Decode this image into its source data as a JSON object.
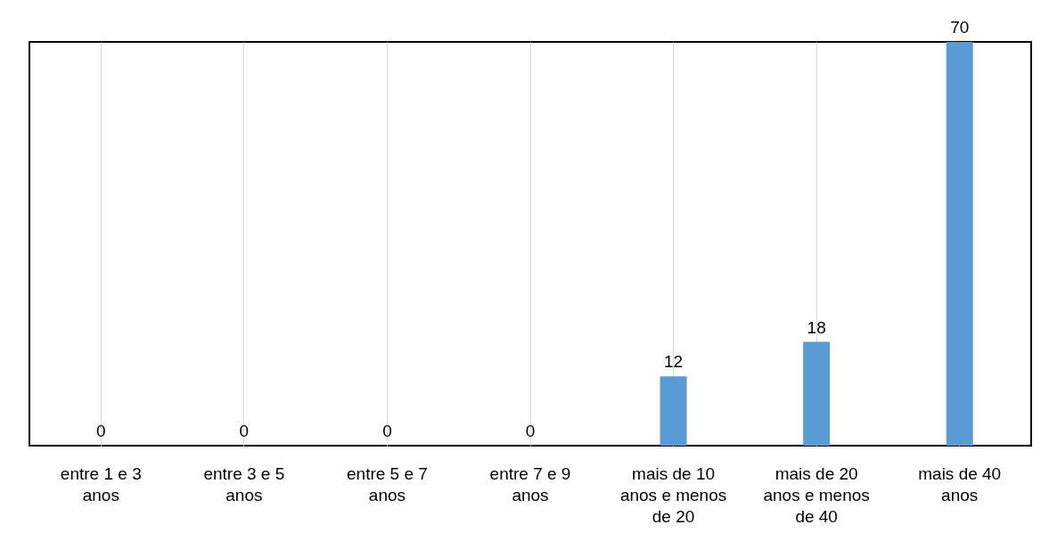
{
  "chart_data": {
    "type": "bar",
    "categories": [
      "entre 1 e 3 anos",
      "entre 3 e 5 anos",
      "entre 5 e 7 anos",
      "entre 7 e 9 anos",
      "mais de 10 anos e menos de 20",
      "mais de 20 anos e menos de 40",
      "mais de 40 anos"
    ],
    "values": [
      0,
      0,
      0,
      0,
      12,
      18,
      70
    ],
    "color": "#5b9bd5",
    "data_labels": true,
    "grid": "x"
  }
}
